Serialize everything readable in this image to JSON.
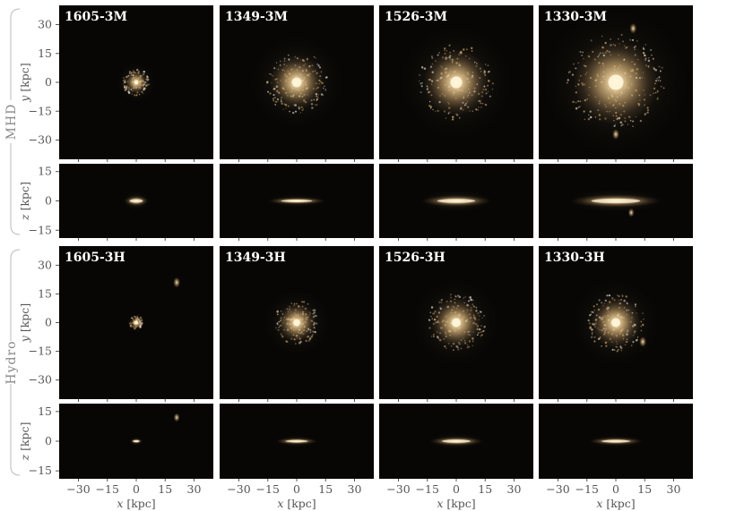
{
  "figure": {
    "rows": [
      {
        "group": "MHD",
        "panels": [
          "1605-3M",
          "1349-3M",
          "1526-3M",
          "1330-3M"
        ]
      },
      {
        "group": "Hydro",
        "panels": [
          "1605-3H",
          "1349-3H",
          "1526-3H",
          "1330-3H"
        ]
      }
    ],
    "row_group_labels": [
      "MHD",
      "Hydro"
    ],
    "face_on_ylabel_var": "y",
    "edge_on_ylabel_var": "z",
    "xlabel_var": "x",
    "unit_label": "[kpc]",
    "x_ticks": [
      "−30",
      "−15",
      "0",
      "15",
      "30"
    ],
    "y_ticks_face": [
      "30",
      "15",
      "0",
      "−15",
      "−30"
    ],
    "y_ticks_edge": [
      "15",
      "0",
      "−15"
    ],
    "colors": {
      "panel_bg": "#070604",
      "galaxy_core": "#fff6dc",
      "galaxy_mid": "#e2b878",
      "galaxy_outer": "#8a6a42",
      "axis_text": "#555555",
      "bracket": "#bbbbbb"
    }
  },
  "chart_data": {
    "type": "image-grid",
    "xlabel": "x [kpc]",
    "ylabel_face_on": "y [kpc]",
    "ylabel_edge_on": "z [kpc]",
    "xlim": [
      -40,
      40
    ],
    "ylim_face_on": [
      -40,
      40
    ],
    "ylim_edge_on": [
      -19,
      19
    ],
    "panels": [
      {
        "name": "1605-3M",
        "group": "MHD",
        "face_radius": 6,
        "edge_scale_height": 1.4,
        "companions_face": [],
        "companions_edge": []
      },
      {
        "name": "1349-3M",
        "group": "MHD",
        "face_radius": 14,
        "edge_scale_height": 1.0,
        "companions_face": [],
        "companions_edge": []
      },
      {
        "name": "1526-3M",
        "group": "MHD",
        "face_radius": 17,
        "edge_scale_height": 1.6,
        "companions_face": [],
        "companions_edge": []
      },
      {
        "name": "1330-3M",
        "group": "MHD",
        "face_radius": 22,
        "edge_scale_height": 1.8,
        "companions_face": [
          {
            "x": 9,
            "y": 28
          },
          {
            "x": 0,
            "y": -27
          }
        ],
        "companions_edge": [
          {
            "x": 8,
            "y": -6
          }
        ]
      },
      {
        "name": "1605-3H",
        "group": "Hydro",
        "face_radius": 3,
        "edge_scale_height": 0.7,
        "companions_face": [
          {
            "x": 21,
            "y": 21
          }
        ],
        "companions_edge": [
          {
            "x": 21,
            "y": 12
          }
        ]
      },
      {
        "name": "1349-3H",
        "group": "Hydro",
        "face_radius": 10,
        "edge_scale_height": 0.9,
        "companions_face": [],
        "companions_edge": []
      },
      {
        "name": "1526-3H",
        "group": "Hydro",
        "face_radius": 13,
        "edge_scale_height": 1.2,
        "companions_face": [],
        "companions_edge": []
      },
      {
        "name": "1330-3H",
        "group": "Hydro",
        "face_radius": 13,
        "edge_scale_height": 1.0,
        "companions_face": [
          {
            "x": 14,
            "y": -10
          }
        ],
        "companions_edge": []
      }
    ]
  }
}
